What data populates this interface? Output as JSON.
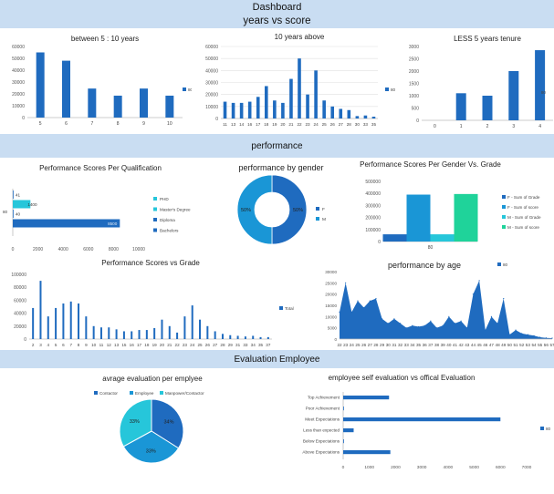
{
  "header": {
    "title": "Dashboard",
    "section_years": "years vs score",
    "section_performance": "performance",
    "section_evaluation": "Evaluation Employee"
  },
  "colors": {
    "primary": "#1f6bbf",
    "mid": "#1a96d6",
    "cyan": "#26c6da",
    "teal": "#1fd39a",
    "band": "#c9ddf2",
    "grid": "#e0e0e0"
  },
  "chart_data": [
    {
      "id": "c1",
      "type": "bar",
      "title": "between 5 : 10 years",
      "categories": [
        "5",
        "6",
        "7",
        "8",
        "9",
        "10"
      ],
      "series": [
        {
          "name": "80",
          "values": [
            55000,
            48000,
            24500,
            18500,
            24500,
            18500
          ]
        }
      ],
      "ylim": [
        0,
        60000
      ],
      "yticks": [
        "0",
        "10000",
        "20000",
        "30000",
        "40000",
        "50000",
        "60000"
      ],
      "legend": "right"
    },
    {
      "id": "c2",
      "type": "bar",
      "title": "10 years above",
      "categories": [
        "11",
        "13",
        "14",
        "16",
        "17",
        "18",
        "19",
        "20",
        "21",
        "22",
        "23",
        "24",
        "25",
        "26",
        "27",
        "28",
        "30",
        "33",
        "35"
      ],
      "series": [
        {
          "name": "80",
          "values": [
            14000,
            13000,
            13000,
            14000,
            18000,
            27000,
            15000,
            13000,
            33000,
            50000,
            20000,
            40000,
            15000,
            10000,
            8000,
            7000,
            2000,
            2500,
            1500
          ]
        }
      ],
      "ylim": [
        0,
        60000
      ],
      "yticks": [
        "0",
        "10000",
        "20000",
        "30000",
        "40000",
        "50000",
        "60000"
      ],
      "legend": "right"
    },
    {
      "id": "c3",
      "type": "bar",
      "title": "LESS 5 years tenure",
      "categories": [
        "0",
        "1",
        "2",
        "3",
        "4"
      ],
      "series": [
        {
          "name": "80",
          "values": [
            0,
            1100,
            1000,
            2000,
            2850
          ]
        }
      ],
      "ylim": [
        0,
        3000
      ],
      "yticks": [
        "0",
        "500",
        "1000",
        "1500",
        "2000",
        "2500",
        "3000"
      ],
      "legend": "right"
    },
    {
      "id": "c4",
      "type": "bar",
      "title": "Performance Scores Per Qualification",
      "orientation": "horizontal",
      "categories": [
        "PHD",
        "Master's Degree",
        "Diploma",
        "Bachelors"
      ],
      "series": [
        {
          "name": "80",
          "values": [
            41,
            1400,
            40,
            8500
          ]
        }
      ],
      "data_labels": [
        "41",
        "1400",
        "40",
        "8500"
      ],
      "xlim": [
        0,
        10000
      ],
      "xticks": [
        "0",
        "2000",
        "4000",
        "6000",
        "8000",
        "10000"
      ],
      "legend_entries": [
        "PHD",
        "Master's Degree",
        "Diploma",
        "Bachelors"
      ],
      "legend": "right"
    },
    {
      "id": "c5",
      "type": "pie",
      "title": "performance by gender",
      "donut": true,
      "categories": [
        "F",
        "M"
      ],
      "values": [
        50,
        50
      ],
      "data_labels": [
        "50%",
        "50%"
      ],
      "legend": "right"
    },
    {
      "id": "c6",
      "type": "bar",
      "title": "Performance Scores Per Gender Vs. Grade",
      "categories": [
        "80"
      ],
      "series": [
        {
          "name": "F - Sum of Grade",
          "values": [
            60000
          ]
        },
        {
          "name": "F - Sum of score",
          "values": [
            390000
          ]
        },
        {
          "name": "M - Sum of Grade",
          "values": [
            60000
          ]
        },
        {
          "name": "M - Sum of score",
          "values": [
            395000
          ]
        }
      ],
      "ylim": [
        0,
        500000
      ],
      "yticks": [
        "0",
        "100000",
        "200000",
        "300000",
        "400000",
        "500000"
      ],
      "legend": "right"
    },
    {
      "id": "c7",
      "type": "bar",
      "title": "Performance Scores vs Grade",
      "categories": [
        "2",
        "3",
        "4",
        "5",
        "6",
        "7",
        "8",
        "9",
        "10",
        "11",
        "12",
        "13",
        "15",
        "16",
        "17",
        "18",
        "19",
        "20",
        "21",
        "22",
        "23",
        "24",
        "25",
        "26",
        "27",
        "28",
        "29",
        "31",
        "33",
        "34",
        "35",
        "37"
      ],
      "series": [
        {
          "name": "Total",
          "values": [
            48000,
            90000,
            35000,
            48000,
            55000,
            58000,
            55000,
            35000,
            20000,
            18000,
            18000,
            15000,
            12000,
            12000,
            14000,
            14000,
            17000,
            30000,
            20000,
            10000,
            35000,
            52000,
            30000,
            20000,
            12000,
            8000,
            6000,
            5000,
            4000,
            5000,
            3000,
            3000
          ]
        }
      ],
      "ylim": [
        0,
        100000
      ],
      "yticks": [
        "0",
        "20000",
        "40000",
        "60000",
        "80000",
        "100000"
      ],
      "legend": "right"
    },
    {
      "id": "c8",
      "type": "area",
      "title": "performance by age",
      "categories": [
        "22",
        "23",
        "24",
        "25",
        "26",
        "27",
        "28",
        "29",
        "30",
        "31",
        "32",
        "33",
        "34",
        "35",
        "36",
        "37",
        "38",
        "39",
        "40",
        "41",
        "42",
        "43",
        "44",
        "45",
        "46",
        "47",
        "48",
        "49",
        "50",
        "51",
        "52",
        "53",
        "54",
        "55",
        "56",
        "57"
      ],
      "series": [
        {
          "name": "80",
          "values": [
            12000,
            25000,
            12000,
            17000,
            14000,
            17000,
            18000,
            9000,
            7000,
            9000,
            7000,
            5000,
            6000,
            5500,
            6000,
            8000,
            5000,
            6000,
            10000,
            7000,
            8000,
            5000,
            20000,
            26000,
            4000,
            10000,
            7000,
            18000,
            2000,
            4000,
            2500,
            2000,
            1500,
            800,
            500,
            400
          ]
        }
      ],
      "ylim": [
        0,
        30000
      ],
      "yticks": [
        "0",
        "5000",
        "10000",
        "15000",
        "20000",
        "25000",
        "30000"
      ],
      "legend": "top-right"
    },
    {
      "id": "c9",
      "type": "pie",
      "title": "avrage evaluation per emplyee",
      "categories": [
        "Contactor",
        "Employee",
        "Manpower/Contactor"
      ],
      "values": [
        34,
        33,
        33
      ],
      "data_labels": [
        "34%",
        "33%",
        "33%"
      ],
      "legend": "top"
    },
    {
      "id": "c10",
      "type": "bar",
      "title": "employee self evaluation vs offical Evaluation",
      "orientation": "horizontal",
      "categories": [
        "Top Achievement",
        "Poor Achievement",
        "Meet Expectations",
        "Less than expected",
        "Below Expectations",
        "Above Expectations"
      ],
      "series": [
        {
          "name": "80",
          "values": [
            1750,
            20,
            6000,
            400,
            30,
            1800
          ]
        }
      ],
      "xlim": [
        0,
        7000
      ],
      "xticks": [
        "0",
        "1000",
        "2000",
        "3000",
        "4000",
        "5000",
        "6000",
        "7000"
      ],
      "legend": "right"
    }
  ]
}
